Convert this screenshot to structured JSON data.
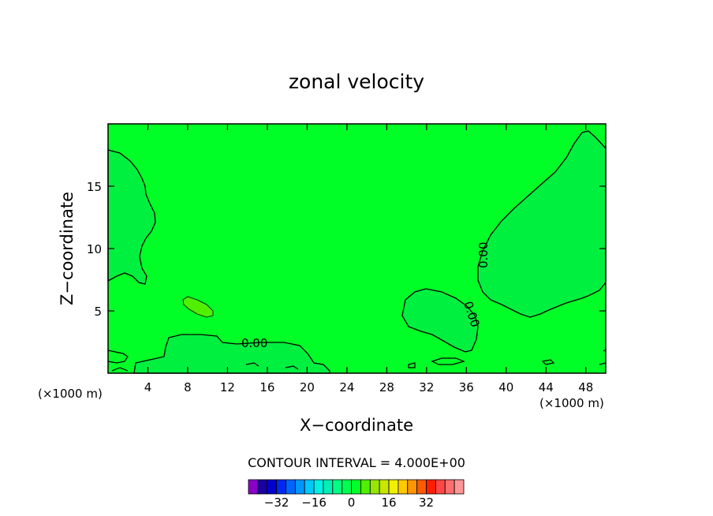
{
  "chart_data": {
    "type": "contour",
    "title": "zonal velocity",
    "xlabel": "X−coordinate",
    "ylabel": "Z−coordinate",
    "x_unit": "(×1000 m)",
    "y_unit": "(×1000 m)",
    "xlim": [
      0,
      50
    ],
    "ylim": [
      0,
      20
    ],
    "xticks": [
      4,
      8,
      12,
      16,
      20,
      24,
      28,
      32,
      36,
      40,
      44,
      48
    ],
    "yticks": [
      5,
      10,
      15
    ],
    "contour_interval_text": "CONTOUR INTERVAL = 4.000E+00",
    "contour_labels": [
      "0.00",
      "0.00",
      "0.00"
    ],
    "background_color": "#00ff26",
    "colorbar": {
      "colors": [
        "#8a00c8",
        "#1a00a0",
        "#0000d0",
        "#0028f0",
        "#0064ff",
        "#0096ff",
        "#00c8ff",
        "#00f0e6",
        "#00f0b4",
        "#00ff82",
        "#00ff50",
        "#00ff26",
        "#50f000",
        "#96e600",
        "#c8e600",
        "#f0f000",
        "#ffc800",
        "#ff9600",
        "#ff5a00",
        "#ff1e00",
        "#ff4646",
        "#ff6e6e",
        "#ff9696"
      ],
      "tick_values": [
        -32,
        -16,
        0,
        16,
        32
      ],
      "tick_labels": [
        "−32",
        "−16",
        "0",
        "16",
        "32"
      ]
    },
    "regions": [
      {
        "name": "left-upper-positive",
        "color": "#00f040"
      },
      {
        "name": "bottom-positive-bulge",
        "color": "#00f040"
      },
      {
        "name": "right-upper-positive",
        "color": "#00f040"
      },
      {
        "name": "center-right-positive",
        "color": "#00f040"
      },
      {
        "name": "small-ellipse-negative",
        "color": "#50f000"
      }
    ]
  }
}
